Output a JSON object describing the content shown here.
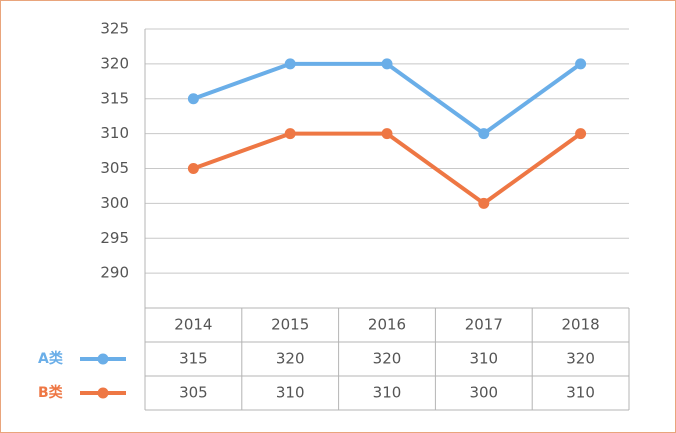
{
  "chart_data": {
    "type": "line",
    "categories": [
      "2014",
      "2015",
      "2016",
      "2017",
      "2018"
    ],
    "series": [
      {
        "name": "A类",
        "color": "#6aaee8",
        "values": [
          315,
          320,
          320,
          310,
          320
        ]
      },
      {
        "name": "B类",
        "color": "#ee7744",
        "values": [
          305,
          310,
          310,
          300,
          310
        ]
      }
    ],
    "ylim": [
      285,
      325
    ],
    "yticks": [
      290,
      295,
      300,
      305,
      310,
      315,
      320,
      325
    ],
    "grid": true
  }
}
